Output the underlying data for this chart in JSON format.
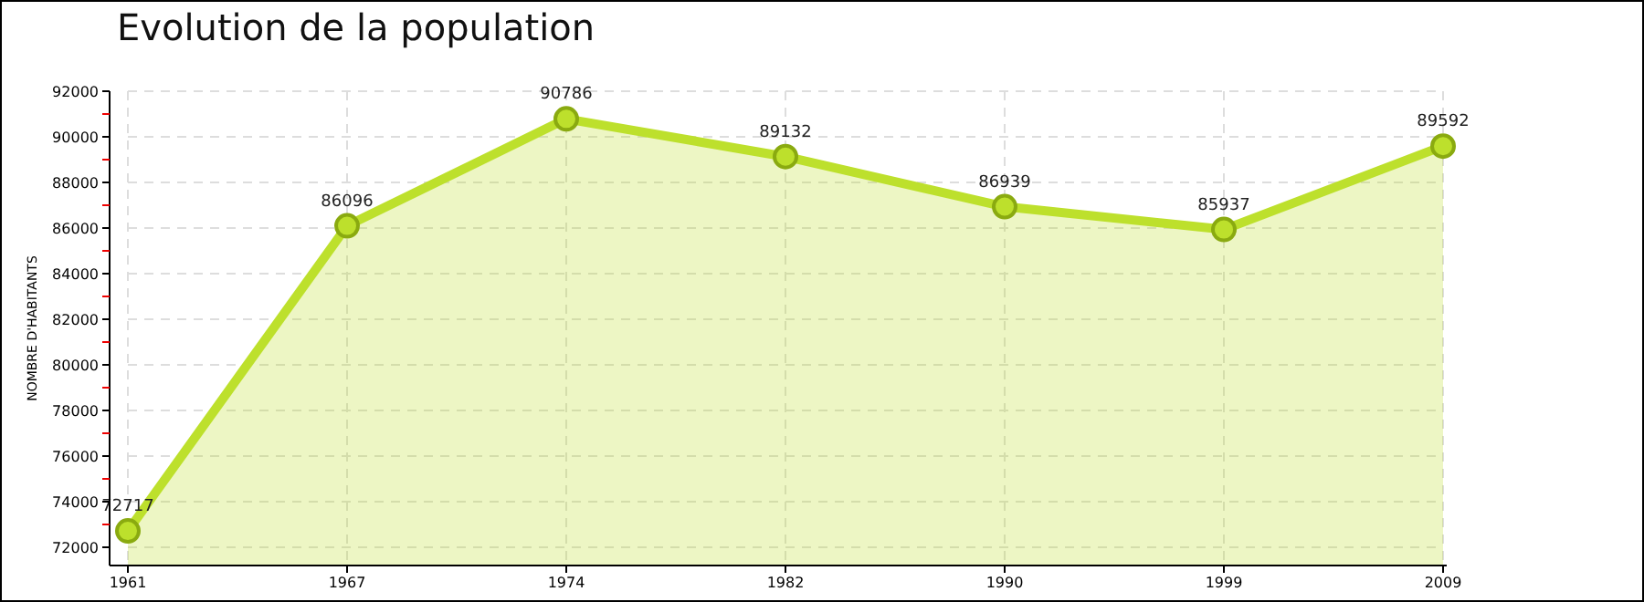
{
  "chart_data": {
    "type": "area",
    "title": "Evolution de la population",
    "ylabel": "NOMBRE D'HABITANTS",
    "categories": [
      "1961",
      "1967",
      "1974",
      "1982",
      "1990",
      "1999",
      "2009"
    ],
    "series": [
      {
        "color": "#bde02c",
        "values": [
          72717,
          86096,
          90786,
          89132,
          86939,
          85937,
          89592
        ]
      }
    ],
    "ylim": [
      71200,
      92000
    ],
    "yticks": [
      72000,
      {
        "value": 73000,
        "label": null
      },
      74000,
      {
        "value": 75000,
        "label": null
      },
      76000,
      {
        "value": 77000,
        "label": null
      },
      78000,
      {
        "value": 79000,
        "label": null
      },
      80000,
      {
        "value": 81000,
        "label": null
      },
      82000,
      {
        "value": 83000,
        "label": null
      },
      84000,
      {
        "value": 85000,
        "label": null
      },
      86000,
      {
        "value": 87000,
        "label": null
      },
      88000,
      {
        "value": 89000,
        "label": null
      },
      90000,
      {
        "value": 91000,
        "label": null
      },
      92000
    ],
    "grid": true,
    "marker": "circle",
    "data_labels": true
  }
}
